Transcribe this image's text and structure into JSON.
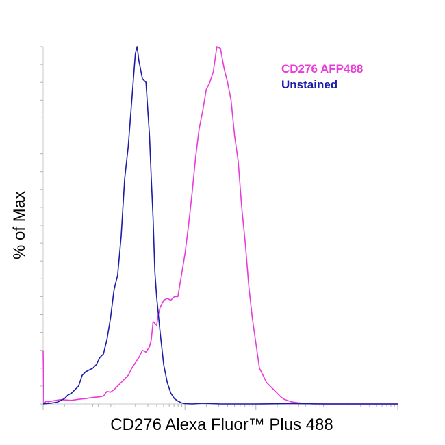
{
  "chart_data": {
    "type": "line",
    "xlabel": "CD276 Alexa Fluor™ Plus 488",
    "ylabel": "% of Max",
    "x_scale": "log",
    "xlim": [
      0,
      100
    ],
    "ylim": [
      0,
      100
    ],
    "grid": false,
    "legend_placement": "top-right",
    "series": [
      {
        "name": "CD276 AFP488",
        "color": "#E83BD8",
        "x": [
          0,
          0.2,
          0.4,
          0.6,
          0.8,
          1.5,
          3,
          5,
          8,
          10,
          12,
          14,
          16,
          17,
          18,
          19,
          20,
          22,
          23,
          24,
          25,
          27,
          28,
          29,
          30,
          30.5,
          31,
          32,
          32.5,
          33,
          34,
          35,
          36,
          37,
          38,
          39,
          40,
          41,
          42,
          43,
          44,
          45,
          46,
          47,
          48,
          49,
          50,
          51,
          52,
          53,
          54,
          55,
          56,
          57,
          58,
          59,
          60,
          61,
          62,
          63,
          64,
          65,
          66,
          67,
          68,
          70,
          72,
          74,
          76,
          80,
          90,
          100
        ],
        "y": [
          15,
          0.5,
          0.3,
          0.5,
          0.8,
          0.6,
          0.9,
          1.2,
          1,
          1.3,
          1.5,
          1.8,
          2,
          2.2,
          3.5,
          3.3,
          4,
          6,
          7,
          8,
          10,
          13,
          15,
          14.5,
          16,
          18,
          23,
          22,
          25,
          27,
          29,
          29.5,
          29,
          30,
          30,
          36,
          42,
          50,
          59,
          69,
          77,
          82,
          88,
          90,
          93,
          100,
          99.5,
          94,
          90,
          85,
          75,
          68,
          55,
          45,
          33,
          24,
          17,
          10,
          8,
          6,
          5,
          4,
          3,
          2,
          1.3,
          0.6,
          0.3,
          0.2,
          0,
          0,
          0,
          0
        ]
      },
      {
        "name": "Unstained",
        "color": "#1C1CA8",
        "x": [
          0,
          2,
          4,
          5,
          6,
          7,
          8,
          9,
          10,
          11,
          12,
          13,
          14,
          15,
          16,
          17,
          18,
          19,
          20,
          21,
          22,
          23,
          24,
          25,
          26,
          26.5,
          27,
          28,
          29,
          30,
          30.5,
          31,
          31.5,
          32,
          33,
          34,
          35,
          36,
          37,
          38,
          39,
          40,
          42,
          45,
          50,
          60,
          70,
          80,
          90,
          100
        ],
        "y": [
          0,
          0.2,
          0.5,
          1,
          1.5,
          2.5,
          3,
          4,
          5,
          8,
          9,
          9.5,
          10,
          11,
          13,
          14,
          18,
          24,
          32,
          36,
          47,
          63,
          72,
          85,
          98,
          100,
          96,
          91,
          90,
          75,
          63,
          52,
          37,
          30,
          20,
          11,
          6,
          3,
          1.5,
          0.8,
          0.3,
          0.1,
          0,
          0.2,
          0,
          0,
          0.1,
          0,
          0,
          0
        ]
      }
    ]
  }
}
